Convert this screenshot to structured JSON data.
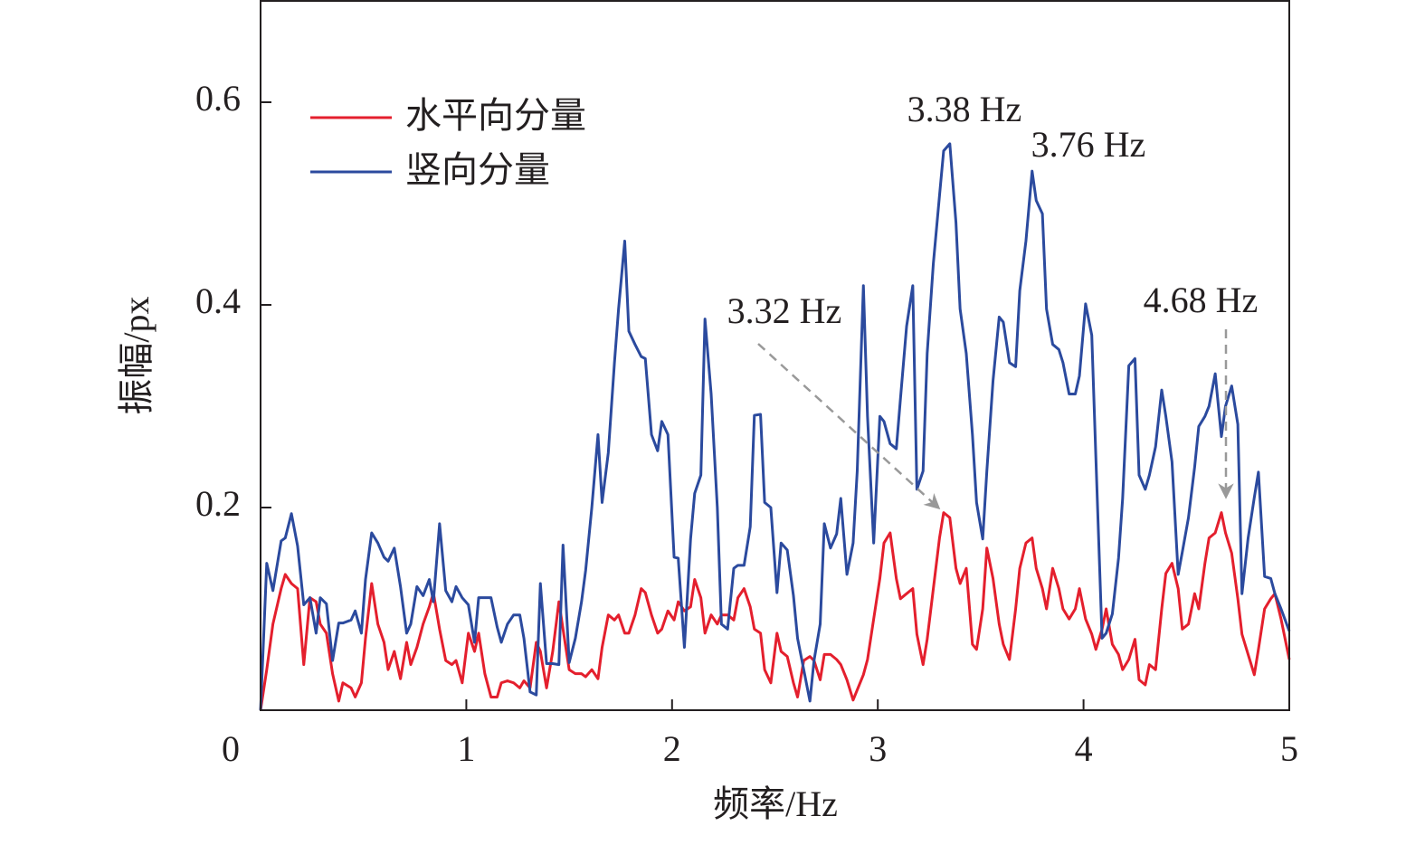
{
  "chart_data": {
    "type": "line",
    "xlabel": "频率/Hz",
    "ylabel": "振幅/px",
    "xlim": [
      0,
      5
    ],
    "ylim": [
      0,
      0.7
    ],
    "xticks": [
      0,
      1,
      2,
      3,
      4,
      5
    ],
    "yticks": [
      0.2,
      0.4,
      0.6
    ],
    "legend": "upper left",
    "x": [
      0,
      0.03,
      0.06,
      0.1,
      0.12,
      0.15,
      0.18,
      0.21,
      0.24,
      0.27,
      0.29,
      0.32,
      0.35,
      0.38,
      0.4,
      0.44,
      0.46,
      0.49,
      0.51,
      0.54,
      0.57,
      0.6,
      0.62,
      0.65,
      0.68,
      0.71,
      0.73,
      0.76,
      0.79,
      0.82,
      0.84,
      0.87,
      0.9,
      0.93,
      0.95,
      0.98,
      1.01,
      1.04,
      1.06,
      1.09,
      1.12,
      1.15,
      1.17,
      1.2,
      1.23,
      1.26,
      1.28,
      1.31,
      1.34,
      1.36,
      1.39,
      1.42,
      1.45,
      1.47,
      1.5,
      1.53,
      1.56,
      1.58,
      1.61,
      1.64,
      1.66,
      1.69,
      1.72,
      1.74,
      1.77,
      1.79,
      1.82,
      1.85,
      1.87,
      1.9,
      1.93,
      1.95,
      1.98,
      2.01,
      2.03,
      2.06,
      2.09,
      2.11,
      2.14,
      2.16,
      2.19,
      2.22,
      2.24,
      2.27,
      2.3,
      2.32,
      2.35,
      2.38,
      2.4,
      2.43,
      2.45,
      2.48,
      2.51,
      2.53,
      2.56,
      2.59,
      2.61,
      2.64,
      2.67,
      2.69,
      2.72,
      2.74,
      2.77,
      2.8,
      2.82,
      2.85,
      2.88,
      2.9,
      2.93,
      2.95,
      2.98,
      3.01,
      3.03,
      3.06,
      3.09,
      3.11,
      3.14,
      3.17,
      3.19,
      3.22,
      3.24,
      3.27,
      3.3,
      3.32,
      3.35,
      3.38,
      3.4,
      3.43,
      3.46,
      3.48,
      3.51,
      3.53,
      3.56,
      3.59,
      3.61,
      3.64,
      3.67,
      3.69,
      3.72,
      3.75,
      3.77,
      3.8,
      3.82,
      3.85,
      3.88,
      3.9,
      3.93,
      3.96,
      3.98,
      4.01,
      4.04,
      4.06,
      4.09,
      4.11,
      4.14,
      4.17,
      4.19,
      4.22,
      4.25,
      4.27,
      4.3,
      4.32,
      4.35,
      4.38,
      4.4,
      4.43,
      4.46,
      4.48,
      4.51,
      4.54,
      4.56,
      4.59,
      4.61,
      4.64,
      4.67,
      4.69,
      4.72,
      4.75,
      4.77,
      4.8,
      4.83,
      4.85,
      4.88,
      4.91,
      4.93,
      4.96,
      5.0
    ],
    "series": [
      {
        "name": "水平向分量",
        "color": "#e41f2d",
        "values": [
          0,
          0.04,
          0.085,
          0.12,
          0.134,
          0.125,
          0.12,
          0.045,
          0.111,
          0.107,
          0.085,
          0.076,
          0.036,
          0.009,
          0.027,
          0.022,
          0.013,
          0.027,
          0.071,
          0.125,
          0.085,
          0.067,
          0.04,
          0.058,
          0.031,
          0.067,
          0.045,
          0.062,
          0.085,
          0.102,
          0.116,
          0.08,
          0.049,
          0.045,
          0.049,
          0.027,
          0.076,
          0.058,
          0.076,
          0.036,
          0.013,
          0.013,
          0.027,
          0.029,
          0.027,
          0.022,
          0.029,
          0.022,
          0.067,
          0.058,
          0.022,
          0.058,
          0.107,
          0.08,
          0.04,
          0.036,
          0.036,
          0.033,
          0.04,
          0.031,
          0.062,
          0.094,
          0.089,
          0.094,
          0.076,
          0.076,
          0.094,
          0.12,
          0.116,
          0.094,
          0.076,
          0.08,
          0.098,
          0.089,
          0.107,
          0.098,
          0.102,
          0.129,
          0.111,
          0.076,
          0.094,
          0.085,
          0.094,
          0.094,
          0.089,
          0.111,
          0.12,
          0.102,
          0.08,
          0.076,
          0.04,
          0.027,
          0.076,
          0.058,
          0.053,
          0.027,
          0.013,
          0.049,
          0.053,
          0.049,
          0.03,
          0.055,
          0.055,
          0.05,
          0.045,
          0.03,
          0.01,
          0.02,
          0.035,
          0.05,
          0.09,
          0.13,
          0.165,
          0.175,
          0.13,
          0.11,
          0.115,
          0.12,
          0.075,
          0.045,
          0.07,
          0.12,
          0.17,
          0.195,
          0.19,
          0.14,
          0.125,
          0.14,
          0.065,
          0.06,
          0.1,
          0.16,
          0.13,
          0.085,
          0.065,
          0.05,
          0.1,
          0.14,
          0.165,
          0.17,
          0.14,
          0.12,
          0.1,
          0.14,
          0.12,
          0.1,
          0.09,
          0.1,
          0.12,
          0.09,
          0.075,
          0.06,
          0.08,
          0.1,
          0.065,
          0.055,
          0.04,
          0.05,
          0.07,
          0.03,
          0.025,
          0.045,
          0.04,
          0.1,
          0.135,
          0.145,
          0.12,
          0.08,
          0.085,
          0.115,
          0.1,
          0.145,
          0.17,
          0.175,
          0.195,
          0.175,
          0.155,
          0.11,
          0.075,
          0.055,
          0.035,
          0.06,
          0.1,
          0.11,
          0.115,
          0.09,
          0.05
        ]
      },
      {
        "name": "竖向分量",
        "color": "#2b4a9e",
        "values": [
          0,
          0.145,
          0.118,
          0.167,
          0.17,
          0.194,
          0.162,
          0.104,
          0.111,
          0.076,
          0.111,
          0.105,
          0.049,
          0.086,
          0.086,
          0.089,
          0.098,
          0.076,
          0.129,
          0.175,
          0.165,
          0.151,
          0.147,
          0.16,
          0.122,
          0.076,
          0.085,
          0.122,
          0.113,
          0.129,
          0.107,
          0.184,
          0.118,
          0.107,
          0.122,
          0.111,
          0.104,
          0.067,
          0.111,
          0.111,
          0.111,
          0.082,
          0.067,
          0.085,
          0.094,
          0.094,
          0.071,
          0.018,
          0.015,
          0.125,
          0.046,
          0.046,
          0.045,
          0.163,
          0.047,
          0.071,
          0.107,
          0.138,
          0.2,
          0.272,
          0.205,
          0.254,
          0.343,
          0.396,
          0.463,
          0.374,
          0.361,
          0.349,
          0.347,
          0.272,
          0.256,
          0.285,
          0.272,
          0.151,
          0.15,
          0.062,
          0.169,
          0.214,
          0.232,
          0.386,
          0.312,
          0.2,
          0.085,
          0.08,
          0.14,
          0.143,
          0.143,
          0.181,
          0.291,
          0.292,
          0.205,
          0.2,
          0.116,
          0.165,
          0.158,
          0.113,
          0.071,
          0.04,
          0.009,
          0.049,
          0.085,
          0.184,
          0.16,
          0.174,
          0.209,
          0.134,
          0.165,
          0.236,
          0.419,
          0.29,
          0.165,
          0.29,
          0.285,
          0.263,
          0.258,
          0.307,
          0.379,
          0.419,
          0.218,
          0.236,
          0.352,
          0.441,
          0.508,
          0.552,
          0.559,
          0.481,
          0.396,
          0.352,
          0.272,
          0.205,
          0.169,
          0.236,
          0.325,
          0.388,
          0.383,
          0.343,
          0.339,
          0.414,
          0.463,
          0.532,
          0.503,
          0.49,
          0.396,
          0.361,
          0.356,
          0.343,
          0.312,
          0.312,
          0.33,
          0.401,
          0.37,
          0.249,
          0.071,
          0.076,
          0.095,
          0.15,
          0.209,
          0.34,
          0.347,
          0.232,
          0.218,
          0.232,
          0.26,
          0.316,
          0.29,
          0.245,
          0.134,
          0.156,
          0.19,
          0.24,
          0.28,
          0.29,
          0.3,
          0.332,
          0.27,
          0.3,
          0.32,
          0.282,
          0.115,
          0.17,
          0.21,
          0.235,
          0.132,
          0.13,
          0.115,
          0.1,
          0.078
        ]
      }
    ],
    "annotations": [
      {
        "text": "3.38 Hz",
        "color": "#2b4a9e"
      },
      {
        "text": "3.76 Hz",
        "color": "#2b4a9e"
      },
      {
        "text": "3.32 Hz",
        "color": "#e5194b"
      },
      {
        "text": "4.68 Hz",
        "color": "#e5194b"
      }
    ]
  }
}
